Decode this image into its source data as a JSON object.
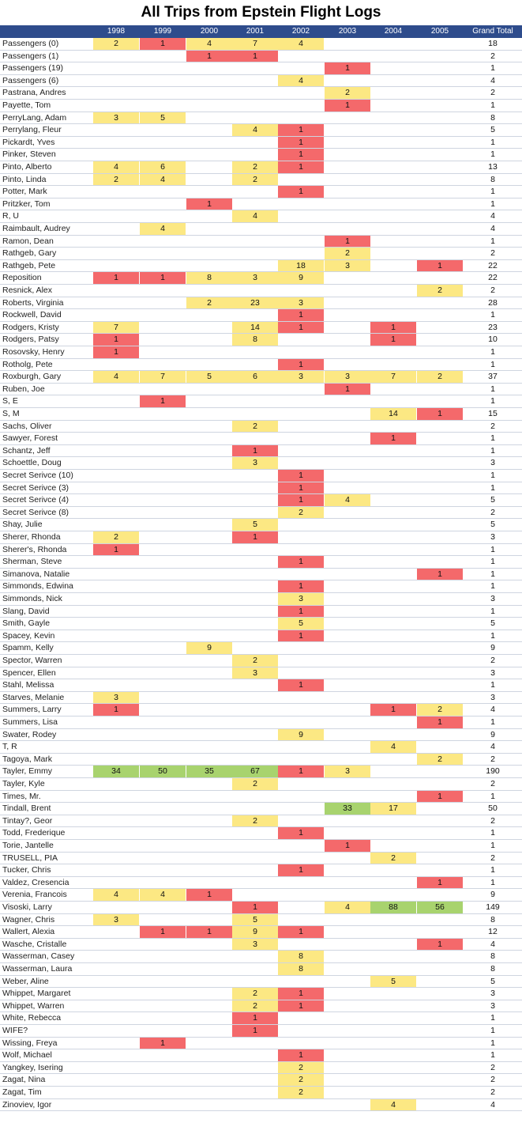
{
  "chart_data": {
    "type": "table",
    "title": "All Trips from Epstein Flight Logs",
    "columns": [
      "1998",
      "1999",
      "2000",
      "2001",
      "2002",
      "2003",
      "2004",
      "2005"
    ],
    "total_label": "Grand Total",
    "colors": {
      "header": "#2e4c8c",
      "low": "#f4696b",
      "mid": "#fce883",
      "high": "#a8d36e"
    },
    "rows": [
      {
        "name": "Passengers (0)",
        "values": [
          2,
          1,
          4,
          7,
          4,
          null,
          null,
          null
        ],
        "total": "18"
      },
      {
        "name": "Passengers (1)",
        "values": [
          null,
          null,
          1,
          1,
          null,
          null,
          null,
          null
        ],
        "total": "2"
      },
      {
        "name": "Passengers (19)",
        "values": [
          null,
          null,
          null,
          null,
          null,
          1,
          null,
          null
        ],
        "total": "1"
      },
      {
        "name": "Passengers (6)",
        "values": [
          null,
          null,
          null,
          null,
          4,
          null,
          null,
          null
        ],
        "total": "4"
      },
      {
        "name": "Pastrana, Andres",
        "values": [
          null,
          null,
          null,
          null,
          null,
          2,
          null,
          null
        ],
        "total": "2"
      },
      {
        "name": "Payette, Tom",
        "values": [
          null,
          null,
          null,
          null,
          null,
          1,
          null,
          null
        ],
        "total": "1"
      },
      {
        "name": "PerryLang, Adam",
        "values": [
          3,
          5,
          null,
          null,
          null,
          null,
          null,
          null
        ],
        "total": "8"
      },
      {
        "name": "Perrylang, Fleur",
        "values": [
          null,
          null,
          null,
          4,
          1,
          null,
          null,
          null
        ],
        "total": "5"
      },
      {
        "name": "Pickardt, Yves",
        "values": [
          null,
          null,
          null,
          null,
          1,
          null,
          null,
          null
        ],
        "total": "1"
      },
      {
        "name": "Pinker, Steven",
        "values": [
          null,
          null,
          null,
          null,
          1,
          null,
          null,
          null
        ],
        "total": "1"
      },
      {
        "name": "Pinto, Alberto",
        "values": [
          4,
          6,
          null,
          2,
          1,
          null,
          null,
          null
        ],
        "total": "13"
      },
      {
        "name": "Pinto, Linda",
        "values": [
          2,
          4,
          null,
          2,
          null,
          null,
          null,
          null
        ],
        "total": "8"
      },
      {
        "name": "Potter, Mark",
        "values": [
          null,
          null,
          null,
          null,
          1,
          null,
          null,
          null
        ],
        "total": "1"
      },
      {
        "name": "Pritzker, Tom",
        "values": [
          null,
          null,
          1,
          null,
          null,
          null,
          null,
          null
        ],
        "total": "1"
      },
      {
        "name": "R, U",
        "values": [
          null,
          null,
          null,
          4,
          null,
          null,
          null,
          null
        ],
        "total": "4"
      },
      {
        "name": "Raimbault, Audrey",
        "values": [
          null,
          4,
          null,
          null,
          null,
          null,
          null,
          null
        ],
        "total": "4"
      },
      {
        "name": "Ramon, Dean",
        "values": [
          null,
          null,
          null,
          null,
          null,
          1,
          null,
          null
        ],
        "total": "1"
      },
      {
        "name": "Rathgeb, Gary",
        "values": [
          null,
          null,
          null,
          null,
          null,
          2,
          null,
          null
        ],
        "total": "2"
      },
      {
        "name": "Rathgeb, Pete",
        "values": [
          null,
          null,
          null,
          null,
          18,
          3,
          null,
          1
        ],
        "total": "22"
      },
      {
        "name": "Reposition",
        "values": [
          1,
          1,
          8,
          3,
          9,
          null,
          null,
          null
        ],
        "total": "22"
      },
      {
        "name": "Resnick, Alex",
        "values": [
          null,
          null,
          null,
          null,
          null,
          null,
          null,
          2
        ],
        "total": "2"
      },
      {
        "name": "Roberts, Virginia",
        "values": [
          null,
          null,
          2,
          23,
          3,
          null,
          null,
          null
        ],
        "total": "28"
      },
      {
        "name": "Rockwell, David",
        "values": [
          null,
          null,
          null,
          null,
          1,
          null,
          null,
          null
        ],
        "total": "1"
      },
      {
        "name": "Rodgers, Kristy",
        "values": [
          7,
          null,
          null,
          14,
          1,
          null,
          1,
          null
        ],
        "total": "23"
      },
      {
        "name": "Rodgers, Patsy",
        "values": [
          1,
          null,
          null,
          8,
          null,
          null,
          1,
          null
        ],
        "total": "10"
      },
      {
        "name": "Rosovsky, Henry",
        "values": [
          1,
          null,
          null,
          null,
          null,
          null,
          null,
          null
        ],
        "total": "1"
      },
      {
        "name": "Rotholg, Pete",
        "values": [
          null,
          null,
          null,
          null,
          1,
          null,
          null,
          null
        ],
        "total": "1"
      },
      {
        "name": "Roxburgh, Gary",
        "values": [
          4,
          7,
          5,
          6,
          3,
          3,
          7,
          2
        ],
        "total": "37"
      },
      {
        "name": "Ruben, Joe",
        "values": [
          null,
          null,
          null,
          null,
          null,
          1,
          null,
          null
        ],
        "total": "1"
      },
      {
        "name": "S, E",
        "values": [
          null,
          1,
          null,
          null,
          null,
          null,
          null,
          null
        ],
        "total": "1"
      },
      {
        "name": "S, M",
        "values": [
          null,
          null,
          null,
          null,
          null,
          null,
          14,
          1
        ],
        "total": "15"
      },
      {
        "name": "Sachs, Oliver",
        "values": [
          null,
          null,
          null,
          2,
          null,
          null,
          null,
          null
        ],
        "total": "2"
      },
      {
        "name": "Sawyer, Forest",
        "values": [
          null,
          null,
          null,
          null,
          null,
          null,
          1,
          null
        ],
        "total": "1"
      },
      {
        "name": "Schantz, Jeff",
        "values": [
          null,
          null,
          null,
          1,
          null,
          null,
          null,
          null
        ],
        "total": "1"
      },
      {
        "name": "Schoettle, Doug",
        "values": [
          null,
          null,
          null,
          3,
          null,
          null,
          null,
          null
        ],
        "total": "3"
      },
      {
        "name": "Secret Serivce (10)",
        "values": [
          null,
          null,
          null,
          null,
          1,
          null,
          null,
          null
        ],
        "total": "1"
      },
      {
        "name": "Secret Serivce (3)",
        "values": [
          null,
          null,
          null,
          null,
          1,
          null,
          null,
          null
        ],
        "total": "1"
      },
      {
        "name": "Secret Serivce (4)",
        "values": [
          null,
          null,
          null,
          null,
          1,
          4,
          null,
          null
        ],
        "total": "5"
      },
      {
        "name": "Secret Serivce (8)",
        "values": [
          null,
          null,
          null,
          null,
          2,
          null,
          null,
          null
        ],
        "total": "2"
      },
      {
        "name": "Shay, Julie",
        "values": [
          null,
          null,
          null,
          5,
          null,
          null,
          null,
          null
        ],
        "total": "5"
      },
      {
        "name": "Sherer, Rhonda",
        "values": [
          2,
          null,
          null,
          1,
          null,
          null,
          null,
          null
        ],
        "total": "3"
      },
      {
        "name": "Sherer's, Rhonda",
        "values": [
          1,
          null,
          null,
          null,
          null,
          null,
          null,
          null
        ],
        "total": "1"
      },
      {
        "name": "Sherman, Steve",
        "values": [
          null,
          null,
          null,
          null,
          1,
          null,
          null,
          null
        ],
        "total": "1"
      },
      {
        "name": "Simanova, Natalie",
        "values": [
          null,
          null,
          null,
          null,
          null,
          null,
          null,
          1
        ],
        "total": "1"
      },
      {
        "name": "Simmonds, Edwina",
        "values": [
          null,
          null,
          null,
          null,
          1,
          null,
          null,
          null
        ],
        "total": "1"
      },
      {
        "name": "Simmonds, Nick",
        "values": [
          null,
          null,
          null,
          null,
          3,
          null,
          null,
          null
        ],
        "total": "3"
      },
      {
        "name": "Slang, David",
        "values": [
          null,
          null,
          null,
          null,
          1,
          null,
          null,
          null
        ],
        "total": "1"
      },
      {
        "name": "Smith, Gayle",
        "values": [
          null,
          null,
          null,
          null,
          5,
          null,
          null,
          null
        ],
        "total": "5"
      },
      {
        "name": "Spacey, Kevin",
        "values": [
          null,
          null,
          null,
          null,
          1,
          null,
          null,
          null
        ],
        "total": "1"
      },
      {
        "name": "Spamm, Kelly",
        "values": [
          null,
          null,
          9,
          null,
          null,
          null,
          null,
          null
        ],
        "total": "9"
      },
      {
        "name": "Spector, Warren",
        "values": [
          null,
          null,
          null,
          2,
          null,
          null,
          null,
          null
        ],
        "total": "2"
      },
      {
        "name": "Spencer, Ellen",
        "values": [
          null,
          null,
          null,
          3,
          null,
          null,
          null,
          null
        ],
        "total": "3"
      },
      {
        "name": "Stahl, Melissa",
        "values": [
          null,
          null,
          null,
          null,
          1,
          null,
          null,
          null
        ],
        "total": "1"
      },
      {
        "name": "Starves, Melanie",
        "values": [
          3,
          null,
          null,
          null,
          null,
          null,
          null,
          null
        ],
        "total": "3"
      },
      {
        "name": "Summers, Larry",
        "values": [
          1,
          null,
          null,
          null,
          null,
          null,
          1,
          2
        ],
        "total": "4"
      },
      {
        "name": "Summers, Lisa",
        "values": [
          null,
          null,
          null,
          null,
          null,
          null,
          null,
          1
        ],
        "total": "1"
      },
      {
        "name": "Swater, Rodey",
        "values": [
          null,
          null,
          null,
          null,
          9,
          null,
          null,
          null
        ],
        "total": "9"
      },
      {
        "name": "T, R",
        "values": [
          null,
          null,
          null,
          null,
          null,
          null,
          4,
          null
        ],
        "total": "4"
      },
      {
        "name": "Tagoya, Mark",
        "values": [
          null,
          null,
          null,
          null,
          null,
          null,
          null,
          2
        ],
        "total": "2"
      },
      {
        "name": "Tayler, Emmy",
        "values": [
          34,
          50,
          35,
          67,
          1,
          3,
          null,
          null
        ],
        "total": "190"
      },
      {
        "name": "Tayler, Kyle",
        "values": [
          null,
          null,
          null,
          2,
          null,
          null,
          null,
          null
        ],
        "total": "2"
      },
      {
        "name": "Times, Mr.",
        "values": [
          null,
          null,
          null,
          null,
          null,
          null,
          null,
          1
        ],
        "total": "1"
      },
      {
        "name": "Tindall, Brent",
        "values": [
          null,
          null,
          null,
          null,
          null,
          33,
          17,
          null
        ],
        "total": "50"
      },
      {
        "name": "Tintay?, Geor",
        "values": [
          null,
          null,
          null,
          2,
          null,
          null,
          null,
          null
        ],
        "total": "2"
      },
      {
        "name": "Todd, Frederique",
        "values": [
          null,
          null,
          null,
          null,
          1,
          null,
          null,
          null
        ],
        "total": "1"
      },
      {
        "name": "Torie, Jantelle",
        "values": [
          null,
          null,
          null,
          null,
          null,
          1,
          null,
          null
        ],
        "total": "1"
      },
      {
        "name": "TRUSELL, PIA",
        "values": [
          null,
          null,
          null,
          null,
          null,
          null,
          2,
          null
        ],
        "total": "2"
      },
      {
        "name": "Tucker, Chris",
        "values": [
          null,
          null,
          null,
          null,
          1,
          null,
          null,
          null
        ],
        "total": "1"
      },
      {
        "name": "Valdez, Cresencia",
        "values": [
          null,
          null,
          null,
          null,
          null,
          null,
          null,
          1
        ],
        "total": "1"
      },
      {
        "name": "Verenia, Francois",
        "values": [
          4,
          4,
          1,
          null,
          null,
          null,
          null,
          null
        ],
        "total": "9"
      },
      {
        "name": "Visoski, Larry",
        "values": [
          null,
          null,
          null,
          1,
          null,
          4,
          88,
          56
        ],
        "total": "149"
      },
      {
        "name": "Wagner, Chris",
        "values": [
          3,
          null,
          null,
          5,
          null,
          null,
          null,
          null
        ],
        "total": "8"
      },
      {
        "name": "Wallert, Alexia",
        "values": [
          null,
          1,
          1,
          9,
          1,
          null,
          null,
          null
        ],
        "total": "12"
      },
      {
        "name": "Wasche, Cristalle",
        "values": [
          null,
          null,
          null,
          3,
          null,
          null,
          null,
          1
        ],
        "total": "4"
      },
      {
        "name": "Wasserman, Casey",
        "values": [
          null,
          null,
          null,
          null,
          8,
          null,
          null,
          null
        ],
        "total": "8"
      },
      {
        "name": "Wasserman, Laura",
        "values": [
          null,
          null,
          null,
          null,
          8,
          null,
          null,
          null
        ],
        "total": "8"
      },
      {
        "name": "Weber, Aline",
        "values": [
          null,
          null,
          null,
          null,
          null,
          null,
          5,
          null
        ],
        "total": "5"
      },
      {
        "name": "Whippet, Margaret",
        "values": [
          null,
          null,
          null,
          2,
          1,
          null,
          null,
          null
        ],
        "total": "3"
      },
      {
        "name": "Whippet, Warren",
        "values": [
          null,
          null,
          null,
          2,
          1,
          null,
          null,
          null
        ],
        "total": "3"
      },
      {
        "name": "White, Rebecca",
        "values": [
          null,
          null,
          null,
          1,
          null,
          null,
          null,
          null
        ],
        "total": "1"
      },
      {
        "name": "WIFE?",
        "values": [
          null,
          null,
          null,
          1,
          null,
          null,
          null,
          null
        ],
        "total": "1"
      },
      {
        "name": "Wissing, Freya",
        "values": [
          null,
          1,
          null,
          null,
          null,
          null,
          null,
          null
        ],
        "total": "1"
      },
      {
        "name": "Wolf, Michael",
        "values": [
          null,
          null,
          null,
          null,
          1,
          null,
          null,
          null
        ],
        "total": "1"
      },
      {
        "name": "Yangkey, Isering",
        "values": [
          null,
          null,
          null,
          null,
          2,
          null,
          null,
          null
        ],
        "total": "2"
      },
      {
        "name": "Zagat, Nina",
        "values": [
          null,
          null,
          null,
          null,
          2,
          null,
          null,
          null
        ],
        "total": "2"
      },
      {
        "name": "Zagat, Tim",
        "values": [
          null,
          null,
          null,
          null,
          2,
          null,
          null,
          null
        ],
        "total": "2"
      },
      {
        "name": "Zinoviev, Igor",
        "values": [
          null,
          null,
          null,
          null,
          null,
          null,
          4,
          null
        ],
        "total": "4"
      }
    ]
  }
}
